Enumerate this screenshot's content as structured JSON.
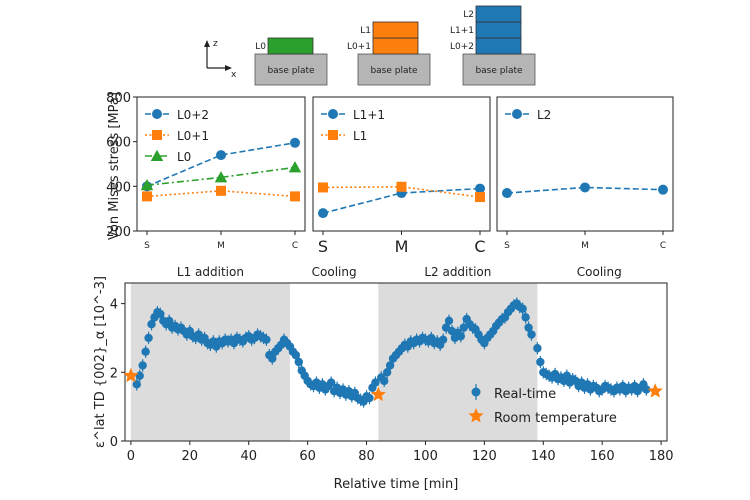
{
  "colors": {
    "blue": "#1f77b4",
    "orange": "#ff7f0e",
    "green": "#2ca02c",
    "gray_plate": "#b5b5b5",
    "shade": "#dcdcdc"
  },
  "schematic": {
    "axis_z": "z",
    "axis_x": "x",
    "plate_label": "base plate",
    "diagrams": [
      {
        "layers": [
          {
            "label": "L0",
            "color": "#2ca02c"
          }
        ]
      },
      {
        "layers": [
          {
            "label": "L0+1",
            "color": "#ff7f0e"
          },
          {
            "label": "L1",
            "color": "#ff7f0e"
          }
        ]
      },
      {
        "layers": [
          {
            "label": "L0+2",
            "color": "#1f77b4"
          },
          {
            "label": "L1+1",
            "color": "#1f77b4"
          },
          {
            "label": "L2",
            "color": "#1f77b4"
          }
        ]
      }
    ]
  },
  "chart_data": [
    {
      "type": "line",
      "panel": "top-1",
      "ylabel": "Von Mises stress [MPa]",
      "categories": [
        "S",
        "M",
        "C"
      ],
      "ylim": [
        200,
        800
      ],
      "yticks": [
        200,
        400,
        600,
        800
      ],
      "legend_placement": "top-left",
      "series": [
        {
          "name": "L0+2",
          "color": "#1f77b4",
          "style": "dashed",
          "marker": "circle",
          "values": [
            400,
            540,
            595
          ]
        },
        {
          "name": "L0+1",
          "color": "#ff7f0e",
          "style": "dotted",
          "marker": "square",
          "values": [
            355,
            380,
            355
          ]
        },
        {
          "name": "L0",
          "color": "#2ca02c",
          "style": "dashdot",
          "marker": "triangle",
          "values": [
            405,
            440,
            485
          ]
        }
      ]
    },
    {
      "type": "line",
      "panel": "top-2",
      "categories": [
        "S",
        "M",
        "C"
      ],
      "ylim": [
        200,
        800
      ],
      "legend_placement": "top-left",
      "series": [
        {
          "name": "L1+1",
          "color": "#1f77b4",
          "style": "dashed",
          "marker": "circle",
          "values": [
            280,
            370,
            390
          ]
        },
        {
          "name": "L1",
          "color": "#ff7f0e",
          "style": "dotted",
          "marker": "square",
          "values": [
            395,
            398,
            352
          ]
        }
      ]
    },
    {
      "type": "line",
      "panel": "top-3",
      "categories": [
        "S",
        "M",
        "C"
      ],
      "ylim": [
        200,
        800
      ],
      "legend_placement": "top-left",
      "series": [
        {
          "name": "L2",
          "color": "#1f77b4",
          "style": "dashed",
          "marker": "circle",
          "values": [
            370,
            395,
            385
          ]
        }
      ]
    },
    {
      "type": "scatter",
      "panel": "bottom",
      "xlabel": "Relative time [min]",
      "ylabel": "ε^lat TD {002}_α [10^-3]",
      "xlim": [
        -2,
        182
      ],
      "ylim": [
        0,
        4.6
      ],
      "xticks": [
        0,
        20,
        40,
        60,
        80,
        100,
        120,
        140,
        160,
        180
      ],
      "yticks": [
        0,
        2,
        4
      ],
      "legend_placement": "bottom-right",
      "phases": [
        {
          "label": "L1 addition",
          "start": 0,
          "end": 54,
          "shaded": true
        },
        {
          "label": "Cooling",
          "start": 54,
          "end": 84,
          "shaded": false
        },
        {
          "label": "L2 addition",
          "start": 84,
          "end": 138,
          "shaded": true
        },
        {
          "label": "Cooling",
          "start": 138,
          "end": 180,
          "shaded": false
        }
      ],
      "series": [
        {
          "name": "Real-time",
          "color": "#1f77b4",
          "marker": "circle",
          "error": 0.18,
          "points": [
            [
              2,
              1.65
            ],
            [
              3,
              1.9
            ],
            [
              4,
              2.2
            ],
            [
              5,
              2.6
            ],
            [
              6,
              3.0
            ],
            [
              7,
              3.4
            ],
            [
              8,
              3.6
            ],
            [
              9,
              3.75
            ],
            [
              10,
              3.7
            ],
            [
              11,
              3.5
            ],
            [
              12,
              3.4
            ],
            [
              13,
              3.5
            ],
            [
              14,
              3.3
            ],
            [
              15,
              3.35
            ],
            [
              16,
              3.25
            ],
            [
              17,
              3.3
            ],
            [
              18,
              3.2
            ],
            [
              19,
              3.1
            ],
            [
              20,
              3.2
            ],
            [
              21,
              3.05
            ],
            [
              22,
              3.0
            ],
            [
              23,
              3.1
            ],
            [
              24,
              2.95
            ],
            [
              25,
              3.0
            ],
            [
              26,
              2.85
            ],
            [
              27,
              2.8
            ],
            [
              28,
              2.9
            ],
            [
              29,
              2.75
            ],
            [
              30,
              2.9
            ],
            [
              31,
              2.85
            ],
            [
              32,
              2.95
            ],
            [
              33,
              2.9
            ],
            [
              34,
              2.95
            ],
            [
              35,
              2.85
            ],
            [
              36,
              3.0
            ],
            [
              37,
              2.95
            ],
            [
              38,
              2.9
            ],
            [
              39,
              3.0
            ],
            [
              40,
              3.05
            ],
            [
              41,
              2.95
            ],
            [
              42,
              3.0
            ],
            [
              43,
              3.1
            ],
            [
              44,
              3.05
            ],
            [
              45,
              3.0
            ],
            [
              46,
              2.95
            ],
            [
              47,
              2.5
            ],
            [
              48,
              2.4
            ],
            [
              49,
              2.6
            ],
            [
              50,
              2.7
            ],
            [
              51,
              2.8
            ],
            [
              52,
              2.95
            ],
            [
              53,
              2.85
            ],
            [
              54,
              2.75
            ],
            [
              55,
              2.6
            ],
            [
              56,
              2.5
            ],
            [
              57,
              2.3
            ],
            [
              58,
              2.05
            ],
            [
              59,
              1.9
            ],
            [
              60,
              1.75
            ],
            [
              61,
              1.65
            ],
            [
              62,
              1.6
            ],
            [
              63,
              1.7
            ],
            [
              64,
              1.55
            ],
            [
              65,
              1.65
            ],
            [
              66,
              1.5
            ],
            [
              67,
              1.6
            ],
            [
              68,
              1.7
            ],
            [
              69,
              1.45
            ],
            [
              70,
              1.55
            ],
            [
              71,
              1.4
            ],
            [
              72,
              1.5
            ],
            [
              73,
              1.35
            ],
            [
              74,
              1.45
            ],
            [
              75,
              1.3
            ],
            [
              76,
              1.4
            ],
            [
              77,
              1.25
            ],
            [
              78,
              1.2
            ],
            [
              79,
              1.15
            ],
            [
              80,
              1.3
            ],
            [
              81,
              1.25
            ],
            [
              82,
              1.55
            ],
            [
              83,
              1.7
            ],
            [
              85,
              1.85
            ],
            [
              86,
              1.75
            ],
            [
              87,
              2.0
            ],
            [
              88,
              2.2
            ],
            [
              89,
              2.4
            ],
            [
              90,
              2.5
            ],
            [
              91,
              2.6
            ],
            [
              92,
              2.7
            ],
            [
              93,
              2.8
            ],
            [
              94,
              2.75
            ],
            [
              95,
              2.9
            ],
            [
              96,
              2.85
            ],
            [
              97,
              2.95
            ],
            [
              98,
              2.9
            ],
            [
              99,
              3.0
            ],
            [
              100,
              2.95
            ],
            [
              101,
              2.9
            ],
            [
              102,
              3.0
            ],
            [
              103,
              2.85
            ],
            [
              104,
              2.9
            ],
            [
              105,
              2.8
            ],
            [
              106,
              2.95
            ],
            [
              107,
              3.3
            ],
            [
              108,
              3.5
            ],
            [
              109,
              3.2
            ],
            [
              110,
              3.0
            ],
            [
              111,
              3.15
            ],
            [
              112,
              3.05
            ],
            [
              113,
              3.3
            ],
            [
              114,
              3.55
            ],
            [
              115,
              3.4
            ],
            [
              116,
              3.3
            ],
            [
              117,
              3.25
            ],
            [
              118,
              3.1
            ],
            [
              119,
              2.95
            ],
            [
              120,
              2.85
            ],
            [
              121,
              3.0
            ],
            [
              122,
              3.1
            ],
            [
              123,
              3.2
            ],
            [
              124,
              3.35
            ],
            [
              125,
              3.45
            ],
            [
              126,
              3.55
            ],
            [
              127,
              3.6
            ],
            [
              128,
              3.75
            ],
            [
              129,
              3.85
            ],
            [
              130,
              3.95
            ],
            [
              131,
              4.0
            ],
            [
              132,
              3.9
            ],
            [
              133,
              3.85
            ],
            [
              134,
              3.6
            ],
            [
              135,
              3.3
            ],
            [
              136,
              3.1
            ],
            [
              138,
              2.7
            ],
            [
              139,
              2.3
            ],
            [
              140,
              2.0
            ],
            [
              141,
              1.95
            ],
            [
              142,
              1.9
            ],
            [
              143,
              1.85
            ],
            [
              144,
              1.95
            ],
            [
              145,
              1.8
            ],
            [
              146,
              1.85
            ],
            [
              147,
              1.75
            ],
            [
              148,
              1.9
            ],
            [
              149,
              1.7
            ],
            [
              150,
              1.8
            ],
            [
              151,
              1.75
            ],
            [
              152,
              1.6
            ],
            [
              153,
              1.7
            ],
            [
              154,
              1.55
            ],
            [
              155,
              1.65
            ],
            [
              156,
              1.5
            ],
            [
              157,
              1.6
            ],
            [
              158,
              1.55
            ],
            [
              159,
              1.45
            ],
            [
              160,
              1.5
            ],
            [
              161,
              1.6
            ],
            [
              162,
              1.55
            ],
            [
              163,
              1.5
            ],
            [
              164,
              1.45
            ],
            [
              165,
              1.55
            ],
            [
              166,
              1.5
            ],
            [
              167,
              1.6
            ],
            [
              168,
              1.45
            ],
            [
              169,
              1.55
            ],
            [
              170,
              1.5
            ],
            [
              171,
              1.6
            ],
            [
              172,
              1.45
            ],
            [
              173,
              1.55
            ],
            [
              174,
              1.65
            ],
            [
              175,
              1.5
            ]
          ]
        },
        {
          "name": "Room temperature",
          "color": "#ff7f0e",
          "marker": "star",
          "points": [
            [
              0,
              1.9
            ],
            [
              84,
              1.35
            ],
            [
              178,
              1.45
            ]
          ]
        }
      ]
    }
  ]
}
